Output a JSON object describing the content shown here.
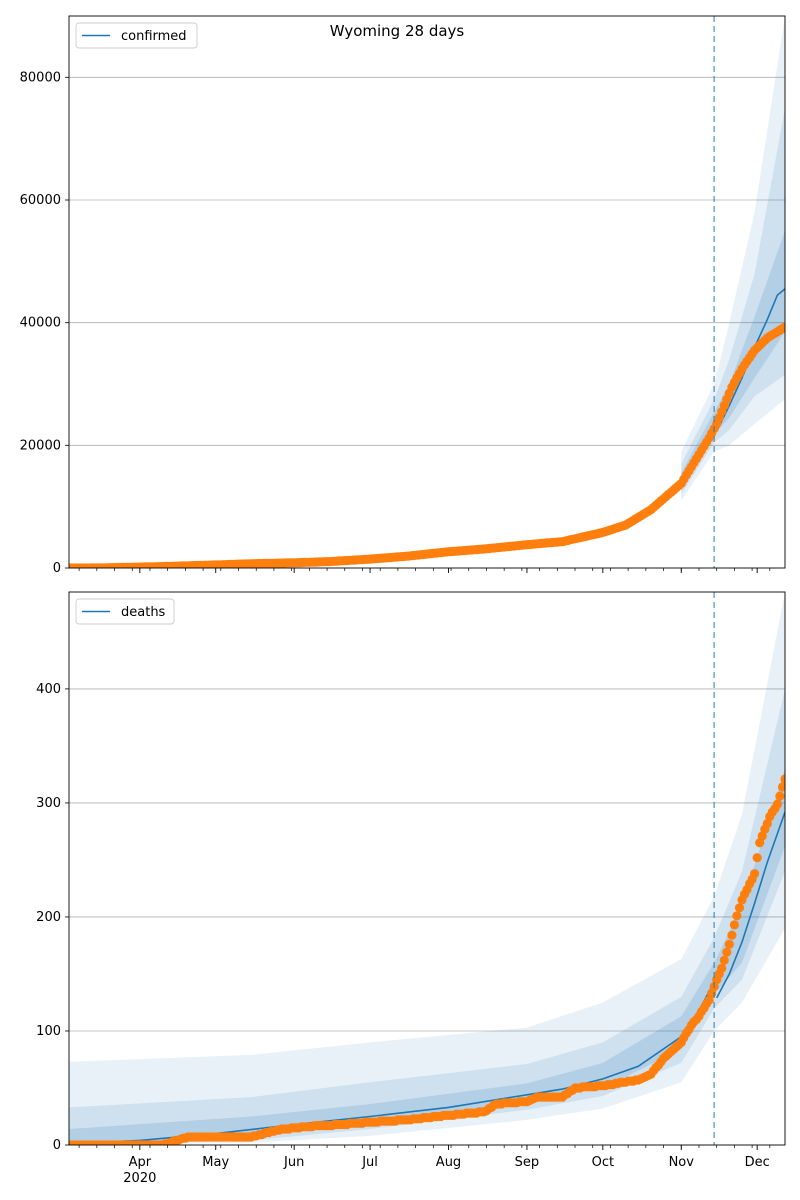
{
  "title": "Wyoming 28 days",
  "colors": {
    "model": "#1f77b4",
    "observed": "#ff7f0e",
    "band": "#1f77b4",
    "grid": "#b0b0b0",
    "forecast_line": "#1f77b4"
  },
  "x_axis": {
    "month_ticks": [
      {
        "date": "2020-04-01",
        "label": "Apr",
        "sublabel": "2020"
      },
      {
        "date": "2020-05-01",
        "label": "May",
        "sublabel": ""
      },
      {
        "date": "2020-06-01",
        "label": "Jun",
        "sublabel": ""
      },
      {
        "date": "2020-07-01",
        "label": "Jul",
        "sublabel": ""
      },
      {
        "date": "2020-08-01",
        "label": "Aug",
        "sublabel": ""
      },
      {
        "date": "2020-09-01",
        "label": "Sep",
        "sublabel": ""
      },
      {
        "date": "2020-10-01",
        "label": "Oct",
        "sublabel": ""
      },
      {
        "date": "2020-11-01",
        "label": "Nov",
        "sublabel": ""
      },
      {
        "date": "2020-12-01",
        "label": "Dec",
        "sublabel": ""
      }
    ]
  },
  "chart_data": [
    {
      "type": "line",
      "legend": "confirmed",
      "legend_position": "upper-left",
      "grid": "y",
      "xlim": [
        "2020-03-04",
        "2020-12-12"
      ],
      "ylim": [
        0,
        90000
      ],
      "yticks": [
        {
          "value": 0,
          "label": "0"
        },
        {
          "value": 20000,
          "label": "20000"
        },
        {
          "value": 40000,
          "label": "40000"
        },
        {
          "value": 60000,
          "label": "60000"
        },
        {
          "value": 80000,
          "label": "80000"
        }
      ],
      "forecast_start": "2020-11-14",
      "model": [
        [
          "2020-03-04",
          0
        ],
        [
          "2020-04-01",
          150
        ],
        [
          "2020-05-01",
          500
        ],
        [
          "2020-06-01",
          900
        ],
        [
          "2020-07-01",
          1400
        ],
        [
          "2020-08-01",
          2700
        ],
        [
          "2020-09-01",
          3900
        ],
        [
          "2020-09-15",
          4500
        ],
        [
          "2020-10-01",
          5900
        ],
        [
          "2020-10-10",
          7300
        ],
        [
          "2020-10-20",
          9800
        ],
        [
          "2020-11-01",
          14000
        ],
        [
          "2020-11-08",
          18000
        ],
        [
          "2020-11-14",
          23500
        ]
      ],
      "forecast": [
        [
          "2020-11-15",
          22300
        ],
        [
          "2020-11-20",
          26500
        ],
        [
          "2020-11-25",
          31000
        ],
        [
          "2020-11-30",
          36000
        ],
        [
          "2020-12-05",
          40500
        ],
        [
          "2020-12-09",
          44500
        ],
        [
          "2020-12-12",
          45500
        ]
      ],
      "bands": [
        {
          "date": "2020-11-01",
          "lo": [
            11000,
            12000,
            12800
          ],
          "hi": [
            19000,
            17000,
            15500
          ]
        },
        {
          "date": "2020-11-14",
          "lo": [
            19000,
            20500,
            21800
          ],
          "hi": [
            30000,
            27500,
            25500
          ]
        },
        {
          "date": "2020-11-20",
          "lo": [
            20000,
            22500,
            24500
          ],
          "hi": [
            40000,
            34000,
            30000
          ]
        },
        {
          "date": "2020-11-30",
          "lo": [
            23500,
            28000,
            31000
          ],
          "hi": [
            58000,
            48000,
            41000
          ]
        },
        {
          "date": "2020-12-12",
          "lo": [
            27500,
            31500,
            38500
          ],
          "hi": [
            90000,
            75000,
            55000
          ]
        }
      ],
      "observed": [
        [
          "2020-03-04",
          0
        ],
        [
          "2020-03-15",
          10
        ],
        [
          "2020-04-01",
          150
        ],
        [
          "2020-04-15",
          300
        ],
        [
          "2020-05-01",
          500
        ],
        [
          "2020-05-15",
          700
        ],
        [
          "2020-06-01",
          850
        ],
        [
          "2020-06-15",
          1050
        ],
        [
          "2020-07-01",
          1450
        ],
        [
          "2020-07-15",
          1900
        ],
        [
          "2020-08-01",
          2650
        ],
        [
          "2020-08-15",
          3100
        ],
        [
          "2020-09-01",
          3800
        ],
        [
          "2020-09-15",
          4300
        ],
        [
          "2020-10-01",
          5800
        ],
        [
          "2020-10-10",
          7000
        ],
        [
          "2020-10-20",
          9500
        ],
        [
          "2020-11-01",
          13800
        ],
        [
          "2020-11-08",
          18500
        ],
        [
          "2020-11-12",
          21200
        ],
        [
          "2020-11-15",
          23500
        ],
        [
          "2020-11-18",
          26500
        ],
        [
          "2020-11-21",
          29500
        ],
        [
          "2020-11-25",
          32500
        ],
        [
          "2020-11-30",
          35500
        ],
        [
          "2020-12-05",
          37500
        ],
        [
          "2020-12-12",
          39300
        ]
      ]
    },
    {
      "type": "line",
      "legend": "deaths",
      "legend_position": "upper-left",
      "grid": "y",
      "xlim": [
        "2020-03-04",
        "2020-12-12"
      ],
      "ylim": [
        0,
        485
      ],
      "yticks": [
        {
          "value": 0,
          "label": "0"
        },
        {
          "value": 100,
          "label": "100"
        },
        {
          "value": 200,
          "label": "200"
        },
        {
          "value": 300,
          "label": "300"
        },
        {
          "value": 400,
          "label": "400"
        }
      ],
      "forecast_start": "2020-11-14",
      "model": [
        [
          "2020-03-04",
          1
        ],
        [
          "2020-04-01",
          4
        ],
        [
          "2020-05-01",
          10
        ],
        [
          "2020-06-01",
          18
        ],
        [
          "2020-07-01",
          25
        ],
        [
          "2020-08-01",
          33
        ],
        [
          "2020-09-01",
          44
        ],
        [
          "2020-09-15",
          49
        ],
        [
          "2020-10-01",
          58
        ],
        [
          "2020-10-15",
          69
        ],
        [
          "2020-11-01",
          95
        ],
        [
          "2020-11-08",
          118
        ],
        [
          "2020-11-14",
          143
        ]
      ],
      "forecast": [
        [
          "2020-11-15",
          129
        ],
        [
          "2020-11-20",
          150
        ],
        [
          "2020-11-25",
          178
        ],
        [
          "2020-11-30",
          212
        ],
        [
          "2020-12-05",
          248
        ],
        [
          "2020-12-12",
          292
        ]
      ],
      "bands": [
        {
          "date": "2020-03-04",
          "lo": [
            0,
            0,
            0
          ],
          "hi": [
            73,
            33,
            14
          ]
        },
        {
          "date": "2020-05-15",
          "lo": [
            2,
            4,
            7
          ],
          "hi": [
            79,
            42,
            25
          ]
        },
        {
          "date": "2020-07-01",
          "lo": [
            8,
            14,
            19
          ],
          "hi": [
            90,
            55,
            36
          ]
        },
        {
          "date": "2020-09-01",
          "lo": [
            22,
            31,
            38
          ],
          "hi": [
            103,
            71,
            54
          ]
        },
        {
          "date": "2020-10-01",
          "lo": [
            32,
            43,
            50
          ],
          "hi": [
            125,
            90,
            72
          ]
        },
        {
          "date": "2020-11-01",
          "lo": [
            55,
            72,
            84
          ],
          "hi": [
            163,
            130,
            113
          ]
        },
        {
          "date": "2020-11-14",
          "lo": [
            100,
            120,
            132
          ],
          "hi": [
            218,
            182,
            160
          ]
        },
        {
          "date": "2020-11-25",
          "lo": [
            125,
            145,
            160
          ],
          "hi": [
            290,
            240,
            210
          ]
        },
        {
          "date": "2020-12-12",
          "lo": [
            190,
            240,
            262
          ],
          "hi": [
            485,
            400,
            330
          ]
        }
      ],
      "observed": [
        [
          "2020-03-04",
          0
        ],
        [
          "2020-04-10",
          0
        ],
        [
          "2020-04-20",
          7
        ],
        [
          "2020-05-15",
          7
        ],
        [
          "2020-05-25",
          13
        ],
        [
          "2020-06-05",
          16
        ],
        [
          "2020-06-20",
          18
        ],
        [
          "2020-07-01",
          20
        ],
        [
          "2020-07-15",
          22
        ],
        [
          "2020-08-01",
          26
        ],
        [
          "2020-08-15",
          29
        ],
        [
          "2020-08-20",
          36
        ],
        [
          "2020-09-01",
          38
        ],
        [
          "2020-09-05",
          42
        ],
        [
          "2020-09-15",
          42
        ],
        [
          "2020-09-20",
          50
        ],
        [
          "2020-10-01",
          52
        ],
        [
          "2020-10-15",
          57
        ],
        [
          "2020-10-20",
          62
        ],
        [
          "2020-10-25",
          76
        ],
        [
          "2020-11-01",
          90
        ],
        [
          "2020-11-05",
          105
        ],
        [
          "2020-11-08",
          113
        ],
        [
          "2020-11-12",
          127
        ],
        [
          "2020-11-15",
          145
        ],
        [
          "2020-11-17",
          155
        ],
        [
          "2020-11-20",
          176
        ],
        [
          "2020-11-23",
          201
        ],
        [
          "2020-11-25",
          215
        ],
        [
          "2020-11-30",
          238
        ],
        [
          "2020-12-02",
          265
        ],
        [
          "2020-12-06",
          288
        ],
        [
          "2020-12-09",
          299
        ],
        [
          "2020-12-12",
          321
        ]
      ]
    }
  ]
}
